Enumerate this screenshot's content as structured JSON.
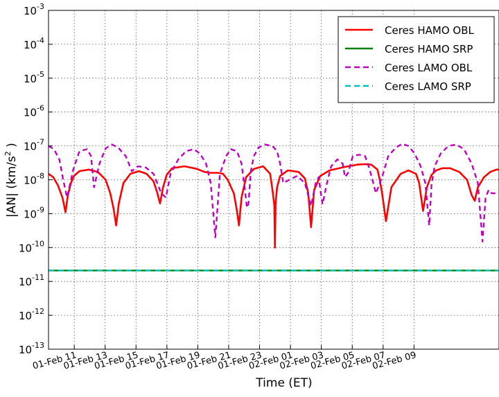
{
  "chart_data": {
    "type": "line",
    "xlabel": "Time (ET)",
    "ylabel": "|AN| (km/s²)",
    "ylabel_parts": {
      "main": "|AN| (km/s",
      "sup": "2",
      "tail": " )"
    },
    "yscale": "log",
    "ylim_exponent": [
      -13,
      -3
    ],
    "xlim": [
      "01-Feb 09:20",
      "02-Feb 09:00"
    ],
    "grid": true,
    "legend_loc": "upper right",
    "x_ticks": [
      "01-Feb 11",
      "01-Feb 13",
      "01-Feb 15",
      "01-Feb 17",
      "01-Feb 19",
      "01-Feb 21",
      "01-Feb 23",
      "02-Feb 01",
      "02-Feb 03",
      "02-Feb 05",
      "02-Feb 07",
      "02-Feb 09"
    ],
    "y_ticks": [
      {
        "base": "10",
        "exp": "-13"
      },
      {
        "base": "10",
        "exp": "-12"
      },
      {
        "base": "10",
        "exp": "-11"
      },
      {
        "base": "10",
        "exp": "-10"
      },
      {
        "base": "10",
        "exp": "-9"
      },
      {
        "base": "10",
        "exp": "-8"
      },
      {
        "base": "10",
        "exp": "-7"
      },
      {
        "base": "10",
        "exp": "-6"
      },
      {
        "base": "10",
        "exp": "-5"
      },
      {
        "base": "10",
        "exp": "-4"
      },
      {
        "base": "10",
        "exp": "-3"
      }
    ],
    "x_unit_note": "hours after 01-Feb 09:20 ET",
    "series": [
      {
        "name": "Ceres HAMO OBL",
        "color": "#ff0000",
        "style": "solid",
        "x_hours": [
          0.0,
          0.3,
          0.6,
          0.9,
          1.1,
          1.25,
          1.45,
          1.65,
          2.0,
          2.6,
          3.2,
          3.7,
          4.0,
          4.2,
          4.38,
          4.55,
          4.85,
          5.3,
          5.85,
          6.35,
          6.8,
          7.05,
          7.22,
          7.42,
          7.65,
          8.0,
          8.8,
          9.6,
          10.1,
          10.5,
          11.0,
          11.3,
          11.6,
          12.0,
          12.2,
          12.33,
          12.5,
          12.8,
          13.3,
          13.9,
          14.35,
          14.5,
          14.62,
          14.66,
          14.7,
          14.8,
          15.0,
          15.5,
          16.2,
          16.6,
          16.82,
          17.0,
          17.2,
          17.6,
          18.2,
          19.2,
          20.0,
          20.5,
          20.9,
          21.3,
          21.45,
          21.6,
          21.85,
          22.2,
          22.8,
          23.3,
          23.8,
          24.0,
          24.25,
          24.5,
          24.8,
          25.1,
          25.5,
          26.0,
          26.6,
          27.1,
          27.4,
          27.6,
          27.8,
          28.2,
          28.6,
          29.0,
          29.17
        ],
        "y": [
          1.5e-08,
          1.2e-08,
          7e-09,
          3e-09,
          1.1e-09,
          3.5e-09,
          8e-09,
          1.3e-08,
          1.8e-08,
          2e-08,
          1.7e-08,
          1e-08,
          4e-09,
          1.5e-09,
          4.5e-10,
          2e-09,
          8e-09,
          1.5e-08,
          1.8e-08,
          1.5e-08,
          9e-09,
          4e-09,
          2e-09,
          6e-09,
          1.4e-08,
          2.2e-08,
          2.5e-08,
          2.1e-08,
          1.7e-08,
          1.6e-08,
          1.6e-08,
          1.5e-08,
          1e-08,
          4e-09,
          1.2e-09,
          4.5e-10,
          3e-09,
          1.2e-08,
          2.1e-08,
          2.5e-08,
          1.5e-08,
          5e-09,
          1.8e-09,
          1e-10,
          2e-09,
          6e-09,
          1.3e-08,
          1.9e-08,
          1.7e-08,
          1.1e-08,
          4e-09,
          4e-10,
          5e-09,
          1.3e-08,
          1.9e-08,
          2.4e-08,
          2.8e-08,
          2.9e-08,
          2.8e-08,
          2e-08,
          1e-08,
          4e-09,
          6e-10,
          6e-09,
          1.5e-08,
          1.9e-08,
          1.5e-08,
          8e-09,
          1.2e-09,
          6e-09,
          1.4e-08,
          1.9e-08,
          2.2e-08,
          2.2e-08,
          1.7e-08,
          1e-08,
          3.5e-09,
          2.4e-09,
          6e-09,
          1.2e-08,
          1.7e-08,
          2e-08,
          2e-08
        ]
      },
      {
        "name": "Ceres HAMO SRP",
        "color": "#008000",
        "style": "solid",
        "x_hours": [
          0.0,
          29.17
        ],
        "y": [
          2.1e-11,
          2.1e-11
        ]
      },
      {
        "name": "Ceres LAMO OBL",
        "color": "#bf00bf",
        "style": "dashed",
        "x_hours": [
          0.0,
          0.35,
          0.7,
          0.95,
          1.2,
          1.6,
          2.0,
          2.5,
          2.75,
          2.95,
          3.3,
          3.7,
          4.1,
          4.5,
          5.0,
          5.4,
          5.8,
          6.3,
          6.8,
          7.3,
          7.6,
          7.9,
          8.4,
          8.9,
          9.4,
          9.8,
          10.2,
          10.5,
          10.8,
          11.1,
          11.5,
          11.8,
          12.2,
          12.5,
          12.7,
          12.85,
          12.95,
          13.1,
          13.3,
          13.6,
          14.0,
          14.5,
          14.8,
          15.0,
          15.2,
          15.6,
          16.1,
          16.6,
          17.0,
          17.3,
          17.5,
          17.6,
          17.75,
          18.0,
          18.3,
          18.7,
          19.05,
          19.2,
          19.4,
          19.7,
          20.1,
          20.5,
          20.8,
          21.2,
          21.6,
          22.0,
          22.5,
          22.9,
          23.3,
          23.7,
          24.1,
          24.4,
          24.65,
          24.8,
          25.0,
          25.4,
          25.9,
          26.4,
          26.9,
          27.4,
          27.8,
          28.1,
          28.3,
          28.5,
          28.7,
          29.0,
          29.17
        ],
        "y": [
          1e-07,
          8e-08,
          4e-08,
          1e-08,
          3e-09,
          2e-08,
          7e-08,
          8e-08,
          5e-08,
          6e-09,
          3e-08,
          8.5e-08,
          1.1e-07,
          9e-08,
          5e-08,
          1.8e-08,
          2.5e-08,
          2.3e-08,
          1.5e-08,
          4e-09,
          3e-09,
          1.5e-08,
          4e-08,
          7e-08,
          8e-08,
          6e-08,
          3e-08,
          8e-09,
          2e-10,
          1.5e-08,
          5e-08,
          8e-08,
          7e-08,
          3e-08,
          6e-09,
          1.5e-09,
          2e-09,
          1.8e-08,
          5e-08,
          9e-08,
          1.1e-07,
          1e-07,
          7e-08,
          3e-08,
          8e-09,
          1e-08,
          1.3e-08,
          8e-09,
          1.7e-09,
          8e-09,
          1.2e-08,
          5e-09,
          1.9e-09,
          7e-09,
          2.5e-08,
          4e-08,
          3e-08,
          1.2e-08,
          1.6e-08,
          5e-08,
          5.5e-08,
          5e-08,
          2e-08,
          4e-09,
          1.2e-08,
          5e-08,
          9e-08,
          1.15e-07,
          1e-07,
          6e-08,
          2.5e-08,
          8e-09,
          4.5e-10,
          7e-09,
          2.5e-08,
          6e-08,
          1e-07,
          1.1e-07,
          8e-08,
          3e-08,
          8e-09,
          1.5e-10,
          3e-09,
          5e-09,
          4e-09,
          4e-09,
          4e-09
        ]
      },
      {
        "name": "Ceres LAMO SRP",
        "color": "#00bfbf",
        "style": "dashed",
        "x_hours": [
          0.0,
          29.17
        ],
        "y": [
          2.1e-11,
          2.1e-11
        ]
      }
    ]
  }
}
